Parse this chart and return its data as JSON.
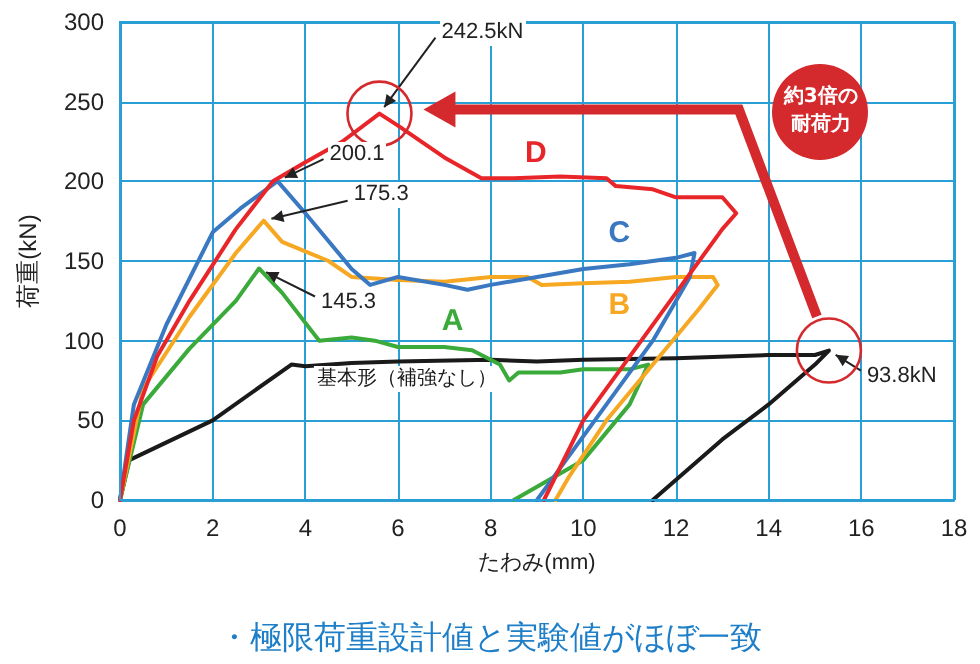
{
  "chart_data": {
    "type": "line",
    "subtitle": "・極限荷重設計値と実験値がほぼ一致",
    "xlabel": "たわみ(mm)",
    "ylabel": "荷重(kN)",
    "xlim": [
      0,
      18
    ],
    "xticks": [
      0,
      2,
      4,
      6,
      8,
      10,
      12,
      14,
      16,
      18
    ],
    "ylim": [
      0,
      300
    ],
    "yticks": [
      0,
      50,
      100,
      150,
      200,
      250,
      300
    ],
    "grid": true,
    "legend": false,
    "marker": "none",
    "line_style": "solid",
    "series": [
      {
        "name": "基本形（補強なし）",
        "color": "#1a1a1a",
        "x": [
          0,
          0.2,
          2,
          3.7,
          4,
          5,
          6,
          8,
          9,
          10,
          12,
          14,
          15,
          15.3,
          15,
          14,
          13,
          11.5
        ],
        "values": [
          0,
          25,
          50,
          85,
          84,
          86,
          87,
          88,
          87,
          88,
          89,
          91,
          91,
          93.8,
          85,
          60,
          38,
          0
        ]
      },
      {
        "name": "A",
        "color": "#3aaa3a",
        "x": [
          0,
          0.5,
          1.5,
          2.5,
          3,
          3.5,
          4.3,
          5,
          5.5,
          6,
          7,
          7.6,
          8.2,
          8.4,
          8.6,
          9.5,
          10,
          11,
          11.4,
          11,
          10,
          8.5
        ],
        "values": [
          0,
          60,
          95,
          125,
          145.3,
          130,
          100,
          102,
          100,
          96,
          96,
          94,
          85,
          75,
          80,
          80,
          82,
          82,
          85,
          60,
          25,
          0
        ]
      },
      {
        "name": "B",
        "color": "#f7a823",
        "x": [
          0,
          0.5,
          1.5,
          2.5,
          3.1,
          3.5,
          4.5,
          5,
          6,
          7,
          8,
          8.8,
          9.1,
          10,
          11,
          12,
          12.8,
          12.9,
          12.5,
          11.5,
          10.5,
          9.7,
          9.4
        ],
        "values": [
          0,
          70,
          115,
          155,
          175.3,
          162,
          150,
          140,
          138,
          137,
          140,
          140,
          135,
          136,
          137,
          140,
          140,
          135,
          120,
          85,
          50,
          15,
          0
        ]
      },
      {
        "name": "C",
        "color": "#3a78c2",
        "x": [
          0,
          0.3,
          1,
          2,
          2.6,
          3.4,
          4,
          5,
          5.4,
          6,
          7,
          7.5,
          8,
          9,
          10,
          11,
          12,
          12.4,
          12.3,
          11.5,
          10.5,
          9.5,
          9
        ],
        "values": [
          0,
          60,
          110,
          168,
          183,
          200.1,
          180,
          145,
          135,
          140,
          135,
          132,
          135,
          140,
          145,
          148,
          152,
          155,
          140,
          100,
          60,
          20,
          0
        ]
      },
      {
        "name": "D",
        "color": "#e8262a",
        "x": [
          0,
          0.3,
          0.8,
          1.5,
          2.5,
          3.3,
          4,
          4.8,
          5.6,
          6,
          7,
          7.8,
          8.5,
          9.5,
          10.5,
          10.7,
          11.5,
          12,
          13,
          13.3,
          13,
          12,
          11,
          10,
          9.15
        ],
        "values": [
          0,
          50,
          90,
          125,
          170,
          200,
          212,
          225,
          242.5,
          235,
          215,
          202,
          202,
          203,
          202,
          197,
          195,
          190,
          190,
          180,
          170,
          130,
          90,
          50,
          0
        ]
      }
    ],
    "annotations": [
      {
        "text": "242.5kN",
        "x": 5.6,
        "y": 242.5
      },
      {
        "text": "200.1",
        "x": 3.4,
        "y": 200.1
      },
      {
        "text": "175.3",
        "x": 3.1,
        "y": 175.3
      },
      {
        "text": "145.3",
        "x": 3,
        "y": 145.3
      },
      {
        "text": "93.8kN",
        "x": 15.3,
        "y": 93.8
      },
      "約3倍の耐荷力"
    ]
  }
}
